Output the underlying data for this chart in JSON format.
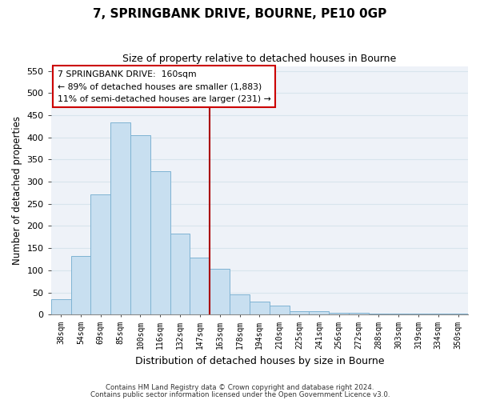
{
  "title": "7, SPRINGBANK DRIVE, BOURNE, PE10 0GP",
  "subtitle": "Size of property relative to detached houses in Bourne",
  "xlabel": "Distribution of detached houses by size in Bourne",
  "ylabel": "Number of detached properties",
  "bar_labels": [
    "38sqm",
    "54sqm",
    "69sqm",
    "85sqm",
    "100sqm",
    "116sqm",
    "132sqm",
    "147sqm",
    "163sqm",
    "178sqm",
    "194sqm",
    "210sqm",
    "225sqm",
    "241sqm",
    "256sqm",
    "272sqm",
    "288sqm",
    "303sqm",
    "319sqm",
    "334sqm",
    "350sqm"
  ],
  "bar_values": [
    35,
    133,
    272,
    433,
    405,
    323,
    183,
    128,
    103,
    46,
    30,
    20,
    8,
    8,
    5,
    4,
    2,
    2,
    2,
    2,
    2
  ],
  "bar_color": "#c8dff0",
  "bar_edge_color": "#7fb3d3",
  "vline_color": "#aa0000",
  "annotation_line1": "7 SPRINGBANK DRIVE:  160sqm",
  "annotation_line2": "← 89% of detached houses are smaller (1,883)",
  "annotation_line3": "11% of semi-detached houses are larger (231) →",
  "annotation_box_edge_color": "#cc0000",
  "annotation_box_facecolor": "#ffffff",
  "ylim": [
    0,
    560
  ],
  "yticks": [
    0,
    50,
    100,
    150,
    200,
    250,
    300,
    350,
    400,
    450,
    500,
    550
  ],
  "footer_line1": "Contains HM Land Registry data © Crown copyright and database right 2024.",
  "footer_line2": "Contains public sector information licensed under the Open Government Licence v3.0.",
  "grid_color": "#d8e4ed",
  "background_color": "#ffffff",
  "plot_bg_color": "#eef2f8"
}
